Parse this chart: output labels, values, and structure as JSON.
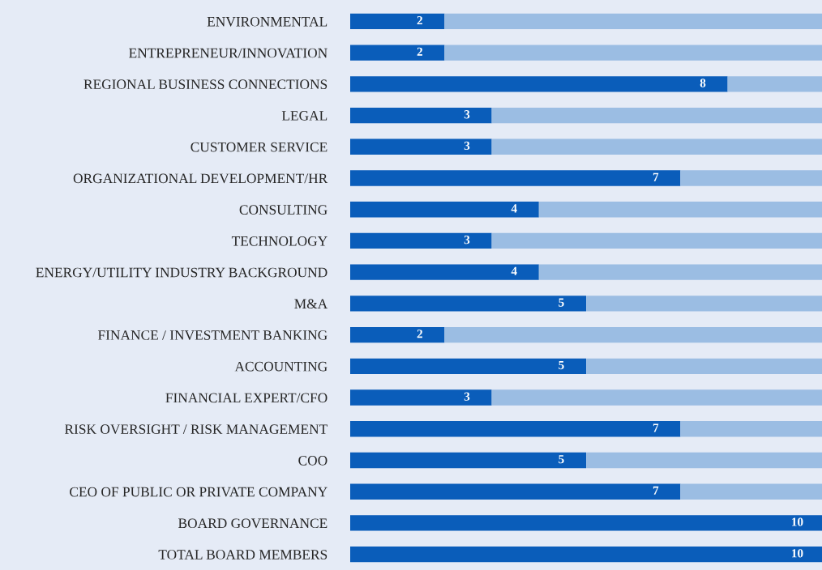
{
  "chart_data": {
    "type": "bar",
    "orientation": "horizontal",
    "stacked": true,
    "categories": [
      "ENVIRONMENTAL",
      "ENTREPRENEUR/INNOVATION",
      "REGIONAL BUSINESS CONNECTIONS",
      "LEGAL",
      "CUSTOMER SERVICE",
      "ORGANIZATIONAL DEVELOPMENT/HR",
      "CONSULTING",
      "TECHNOLOGY",
      "ENERGY/UTILITY INDUSTRY BACKGROUND",
      "M&A",
      "FINANCE / INVESTMENT BANKING",
      "ACCOUNTING",
      "FINANCIAL EXPERT/CFO",
      "RISK OVERSIGHT / RISK MANAGEMENT",
      "COO",
      "CEO OF PUBLIC OR PRIVATE COMPANY",
      "BOARD GOVERNANCE",
      "TOTAL BOARD MEMBERS"
    ],
    "series": [
      {
        "color": "#0a5dba",
        "values": [
          2,
          2,
          8,
          3,
          3,
          7,
          4,
          3,
          4,
          5,
          2,
          5,
          3,
          7,
          5,
          7,
          10,
          10
        ],
        "value_labels": [
          "2",
          "2",
          "8",
          "3",
          "3",
          "7",
          "4",
          "3",
          "4",
          "5",
          "2",
          "5",
          "3",
          "7",
          "5",
          "7",
          "10",
          "10"
        ]
      },
      {
        "color": "#9bbde3",
        "values": [
          8,
          8,
          2,
          7,
          7,
          3,
          6,
          7,
          6,
          5,
          8,
          5,
          7,
          3,
          5,
          3,
          0,
          0
        ]
      }
    ],
    "xlim": [
      0,
      10
    ],
    "tick_labels": "y",
    "legend": false
  }
}
